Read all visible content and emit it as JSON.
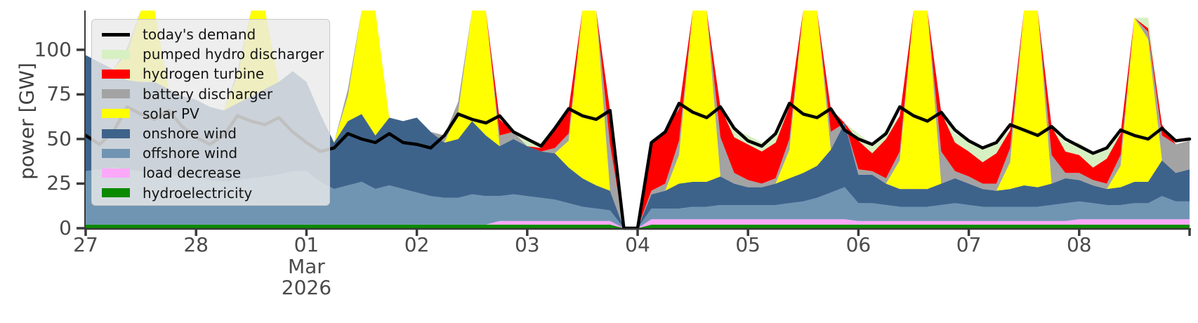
{
  "figure": {
    "kind": "power-dispatch-stacked-area"
  },
  "axes": {
    "ylabel": "power [GW]",
    "y_ticks": [
      0,
      25,
      50,
      75,
      100
    ],
    "ylim": [
      0,
      122
    ],
    "x_ticks": [
      {
        "hour": 0,
        "label": "27"
      },
      {
        "hour": 24,
        "label": "28"
      },
      {
        "hour": 48,
        "label": "01"
      },
      {
        "hour": 72,
        "label": "02"
      },
      {
        "hour": 96,
        "label": "03"
      },
      {
        "hour": 120,
        "label": "04"
      },
      {
        "hour": 144,
        "label": "05"
      },
      {
        "hour": 168,
        "label": "06"
      },
      {
        "hour": 192,
        "label": "07"
      },
      {
        "hour": 216,
        "label": "08"
      },
      {
        "hour": 240,
        "label": ""
      }
    ],
    "month_label": "Mar",
    "year_label": "2026",
    "month_anchor_hour": 48,
    "axis_color": "#3a3a3a",
    "tick_text_color": "#4a4a4a"
  },
  "legend": {
    "items": [
      {
        "id": "demand",
        "label": "today's demand",
        "color": "#000000",
        "swatch": "line"
      },
      {
        "id": "pumped-hydro-discharger",
        "label": "pumped hydro discharger",
        "color": "#d7f0c2",
        "swatch": "rect"
      },
      {
        "id": "hydrogen-turbine",
        "label": "hydrogen turbine",
        "color": "#ff0000",
        "swatch": "rect"
      },
      {
        "id": "battery-discharger",
        "label": "battery discharger",
        "color": "#a3a3a3",
        "swatch": "rect"
      },
      {
        "id": "solar-pv",
        "label": "solar PV",
        "color": "#ffff00",
        "swatch": "rect"
      },
      {
        "id": "onshore-wind",
        "label": "onshore wind",
        "color": "#3e638b",
        "swatch": "rect"
      },
      {
        "id": "offshore-wind",
        "label": "offshore wind",
        "color": "#7095b3",
        "swatch": "rect"
      },
      {
        "id": "load-decrease",
        "label": "load decrease",
        "color": "#fca8f8",
        "swatch": "rect"
      },
      {
        "id": "hydroelectricity",
        "label": "hydroelectricity",
        "color": "#0a8a00",
        "swatch": "rect"
      }
    ]
  },
  "chart_data": {
    "type": "area",
    "stacked": true,
    "title": "",
    "xlabel": "",
    "ylabel": "power [GW]",
    "x_start_label": "Feb 27 2026 00:00",
    "x_step_hours": 3,
    "x_total_hours": 240,
    "ylim": [
      0,
      122
    ],
    "clip_at_ymax": true,
    "note_gap": "all series and demand drop to 0 between Mar 03 ~20:00 and Mar 04 ~00:00 (data gap notch)",
    "series": [
      {
        "name": "hydroelectricity",
        "color": "#0a8a00",
        "values": [
          2,
          2,
          2,
          2,
          2,
          2,
          2,
          2,
          2,
          2,
          2,
          2,
          2,
          2,
          2,
          2,
          2,
          2,
          2,
          2,
          2,
          2,
          2,
          2,
          2,
          2,
          2,
          2,
          2,
          2,
          2,
          2,
          2,
          2,
          2,
          2,
          2,
          2,
          2,
          0,
          0,
          2,
          2,
          2,
          2,
          2,
          2,
          2,
          2,
          2,
          2,
          2,
          2,
          2,
          2,
          2,
          2,
          2,
          2,
          2,
          2,
          2,
          2,
          2,
          2,
          2,
          2,
          2,
          2,
          2,
          2,
          2,
          2,
          2,
          2,
          2,
          2,
          2,
          2,
          2,
          2
        ]
      },
      {
        "name": "load decrease",
        "color": "#fca8f8",
        "values": [
          0,
          0,
          0,
          0,
          0,
          0,
          0,
          0,
          0,
          0,
          0,
          0,
          0,
          0,
          0,
          0,
          0,
          0,
          0,
          0,
          0,
          0,
          0,
          0,
          0,
          0,
          0,
          0,
          0,
          0,
          2,
          2,
          2,
          2,
          2,
          2,
          2,
          2,
          2,
          0,
          0,
          3,
          3,
          3,
          3,
          3,
          3,
          3,
          3,
          3,
          3,
          3,
          3,
          3,
          3,
          3,
          2,
          2,
          2,
          2,
          2,
          2,
          2,
          2,
          2,
          2,
          2,
          2,
          2,
          2,
          2,
          2,
          3,
          3,
          3,
          3,
          3,
          3,
          3,
          3,
          3
        ]
      },
      {
        "name": "offshore wind",
        "color": "#7095b3",
        "values": [
          30,
          31,
          32,
          31,
          30,
          29,
          28,
          27,
          26,
          25,
          24,
          25,
          26,
          27,
          28,
          30,
          30,
          24,
          20,
          22,
          24,
          20,
          22,
          20,
          18,
          16,
          15,
          15,
          17,
          16,
          14,
          15,
          14,
          13,
          12,
          10,
          8,
          7,
          6,
          0,
          0,
          6,
          6,
          6,
          7,
          7,
          8,
          8,
          8,
          8,
          8,
          9,
          10,
          12,
          15,
          18,
          10,
          10,
          9,
          8,
          8,
          8,
          9,
          10,
          9,
          8,
          8,
          8,
          8,
          8,
          9,
          10,
          10,
          9,
          8,
          8,
          9,
          9,
          13,
          10,
          10
        ]
      },
      {
        "name": "onshore wind",
        "color": "#3e638b",
        "values": [
          65,
          60,
          55,
          50,
          50,
          51,
          48,
          45,
          44,
          41,
          40,
          43,
          46,
          49,
          52,
          56,
          50,
          38,
          26,
          36,
          38,
          30,
          38,
          38,
          42,
          36,
          31,
          33,
          41,
          34,
          28,
          31,
          28,
          26,
          26,
          20,
          16,
          13,
          11,
          0,
          0,
          8,
          10,
          14,
          14,
          14,
          16,
          12,
          10,
          10,
          12,
          14,
          16,
          18,
          24,
          36,
          16,
          16,
          12,
          10,
          10,
          10,
          12,
          14,
          12,
          10,
          9,
          10,
          12,
          11,
          12,
          14,
          12,
          10,
          9,
          10,
          12,
          12,
          20,
          16,
          18
        ]
      },
      {
        "name": "solar PV",
        "color": "#ffff00",
        "values": [
          0,
          0,
          0,
          15,
          185,
          168,
          0,
          0,
          0,
          0,
          0,
          15,
          182,
          165,
          0,
          0,
          0,
          0,
          0,
          14,
          178,
          160,
          0,
          0,
          0,
          0,
          0,
          15,
          180,
          162,
          0,
          0,
          0,
          0,
          0,
          15,
          180,
          160,
          0,
          0,
          0,
          0,
          0,
          16,
          185,
          168,
          0,
          0,
          0,
          0,
          0,
          16,
          188,
          170,
          0,
          0,
          0,
          0,
          0,
          16,
          185,
          168,
          0,
          0,
          0,
          0,
          0,
          15,
          180,
          162,
          0,
          0,
          0,
          0,
          0,
          12,
          92,
          80,
          0,
          0,
          0
        ]
      },
      {
        "name": "battery discharger",
        "color": "#a3a3a3",
        "values": [
          0,
          0,
          0,
          3,
          0,
          4,
          0,
          0,
          0,
          0,
          0,
          3,
          0,
          4,
          0,
          0,
          0,
          0,
          0,
          4,
          0,
          5,
          0,
          0,
          0,
          0,
          4,
          6,
          0,
          8,
          6,
          4,
          0,
          0,
          3,
          4,
          0,
          10,
          26,
          0,
          0,
          2,
          4,
          8,
          0,
          12,
          22,
          6,
          4,
          2,
          3,
          6,
          0,
          10,
          10,
          0,
          3,
          2,
          3,
          5,
          0,
          12,
          18,
          4,
          4,
          3,
          4,
          8,
          0,
          6,
          16,
          3,
          4,
          3,
          3,
          6,
          0,
          4,
          14,
          16,
          16
        ]
      },
      {
        "name": "hydrogen turbine",
        "color": "#ff0000",
        "values": [
          0,
          0,
          0,
          0,
          0,
          0,
          0,
          0,
          0,
          0,
          0,
          0,
          0,
          0,
          0,
          0,
          0,
          0,
          0,
          0,
          0,
          0,
          0,
          0,
          0,
          0,
          0,
          0,
          0,
          0,
          9,
          0,
          0,
          2,
          12,
          14,
          4,
          12,
          19,
          0,
          0,
          26,
          30,
          18,
          0,
          4,
          17,
          20,
          20,
          18,
          20,
          18,
          0,
          0,
          13,
          0,
          16,
          10,
          22,
          20,
          0,
          8,
          22,
          16,
          14,
          12,
          17,
          10,
          0,
          4,
          16,
          12,
          10,
          7,
          14,
          12,
          0,
          2,
          6,
          0,
          0
        ]
      },
      {
        "name": "pumped hydro discharger",
        "color": "#d7f0c2",
        "values": [
          0,
          0,
          0,
          0,
          0,
          0,
          0,
          0,
          0,
          0,
          0,
          0,
          0,
          0,
          0,
          0,
          0,
          0,
          0,
          0,
          0,
          0,
          0,
          0,
          0,
          0,
          0,
          0,
          0,
          0,
          0,
          0,
          4,
          3,
          0,
          0,
          0,
          0,
          0,
          0,
          0,
          0,
          0,
          0,
          0,
          6,
          0,
          5,
          5,
          5,
          5,
          0,
          0,
          0,
          0,
          0,
          4,
          5,
          5,
          0,
          0,
          5,
          0,
          5,
          6,
          7,
          6,
          0,
          0,
          3,
          0,
          5,
          7,
          8,
          7,
          0,
          0,
          6,
          0,
          0,
          0
        ]
      }
    ],
    "demand_line": {
      "name": "today's demand",
      "color": "#000000",
      "width": 4.5,
      "values": [
        52,
        47,
        54,
        68,
        64,
        61,
        66,
        57,
        51,
        47,
        52,
        63,
        60,
        58,
        62,
        54,
        48,
        43,
        45,
        53,
        50,
        48,
        53,
        48,
        47,
        45,
        52,
        64,
        61,
        59,
        63,
        54,
        50,
        46,
        56,
        67,
        63,
        61,
        66,
        0,
        0,
        48,
        54,
        70,
        65,
        62,
        68,
        56,
        49,
        46,
        53,
        70,
        64,
        62,
        67,
        55,
        50,
        47,
        53,
        68,
        63,
        60,
        65,
        55,
        49,
        45,
        48,
        58,
        55,
        52,
        57,
        50,
        46,
        42,
        45,
        55,
        52,
        50,
        56,
        49,
        50
      ]
    }
  }
}
